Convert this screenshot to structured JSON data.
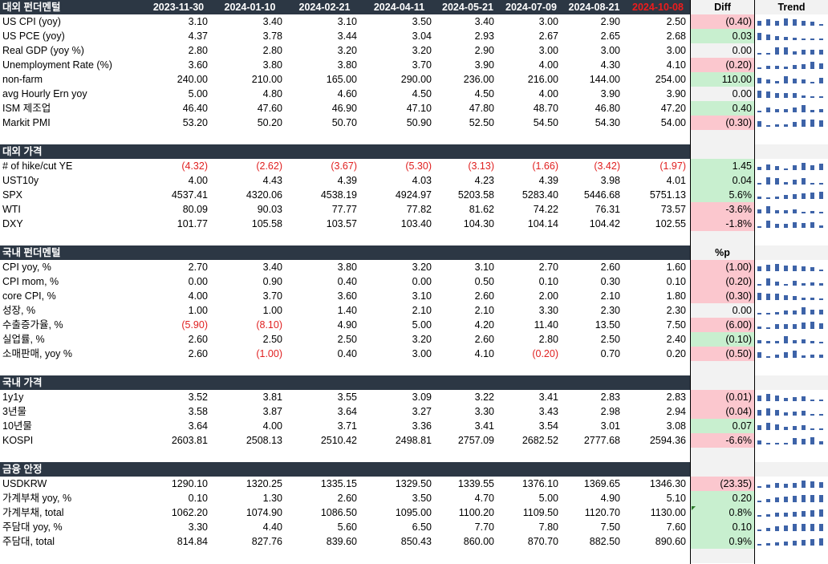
{
  "header": {
    "dates": [
      "2023-11-30",
      "2024-01-10",
      "2024-02-21",
      "2024-04-11",
      "2024-05-21",
      "2024-07-09",
      "2024-08-21",
      "2024-10-08"
    ],
    "highlight_last": "#ee1c1c",
    "diff_label": "Diff",
    "trend_label": "Trend"
  },
  "colors": {
    "section_bg": "#2c3744",
    "positive_bg": "#c8efcf",
    "negative_bg": "#fbc7ce",
    "neutral_bg": "#f2f2f2",
    "bar": "#3d63a8",
    "negative_text": "#e02020"
  },
  "sections": [
    {
      "title": "대외 펀더멘털",
      "col_label": "",
      "rows": [
        {
          "label": "US CPI (yoy)",
          "values": [
            "3.10",
            "3.40",
            "3.10",
            "3.50",
            "3.40",
            "3.00",
            "2.90",
            "2.50"
          ],
          "diff": "(0.40)",
          "sign": "neg"
        },
        {
          "label": "US PCE (yoy)",
          "values": [
            "4.37",
            "3.78",
            "3.44",
            "3.04",
            "2.93",
            "2.67",
            "2.65",
            "2.68"
          ],
          "diff": "0.03",
          "sign": "pos"
        },
        {
          "label": "Real GDP (yoy %)",
          "values": [
            "2.80",
            "2.80",
            "3.20",
            "3.20",
            "2.90",
            "3.00",
            "3.00",
            "3.00"
          ],
          "diff": "0.00",
          "sign": "zero"
        },
        {
          "label": "Unemployment Rate (%)",
          "values": [
            "3.60",
            "3.80",
            "3.80",
            "3.70",
            "3.90",
            "4.00",
            "4.30",
            "4.10"
          ],
          "diff": "(0.20)",
          "sign": "neg"
        },
        {
          "label": "non-farm",
          "values": [
            "240.00",
            "210.00",
            "165.00",
            "290.00",
            "236.00",
            "216.00",
            "144.00",
            "254.00"
          ],
          "diff": "110.00",
          "sign": "pos"
        },
        {
          "label": "avg Hourly Ern yoy",
          "values": [
            "5.00",
            "4.80",
            "4.60",
            "4.50",
            "4.50",
            "4.00",
            "3.90",
            "3.90"
          ],
          "diff": "0.00",
          "sign": "zero"
        },
        {
          "label": "ISM 제조업",
          "values": [
            "46.40",
            "47.60",
            "46.90",
            "47.10",
            "47.80",
            "48.70",
            "46.80",
            "47.20"
          ],
          "diff": "0.40",
          "sign": "pos"
        },
        {
          "label": "Markit PMI",
          "values": [
            "53.20",
            "50.20",
            "50.70",
            "50.90",
            "52.50",
            "54.50",
            "54.30",
            "54.00"
          ],
          "diff": "(0.30)",
          "sign": "neg"
        }
      ]
    },
    {
      "title": "대외 가격",
      "col_label": "",
      "rows": [
        {
          "label": "# of hike/cut YE",
          "values": [
            "(4.32)",
            "(2.62)",
            "(3.67)",
            "(5.30)",
            "(3.13)",
            "(1.66)",
            "(3.42)",
            "(1.97)"
          ],
          "diff": "1.45",
          "sign": "pos"
        },
        {
          "label": "UST10y",
          "values": [
            "4.00",
            "4.43",
            "4.39",
            "4.03",
            "4.23",
            "4.39",
            "3.98",
            "4.01"
          ],
          "diff": "0.04",
          "sign": "pos"
        },
        {
          "label": "SPX",
          "values": [
            "4537.41",
            "4320.06",
            "4538.19",
            "4924.97",
            "5203.58",
            "5283.40",
            "5446.68",
            "5751.13"
          ],
          "diff": "5.6%",
          "sign": "pos"
        },
        {
          "label": "WTI",
          "values": [
            "80.09",
            "90.03",
            "77.77",
            "77.82",
            "81.62",
            "74.22",
            "76.31",
            "73.57"
          ],
          "diff": "-3.6%",
          "sign": "neg"
        },
        {
          "label": "DXY",
          "values": [
            "101.77",
            "105.58",
            "103.57",
            "103.40",
            "104.30",
            "104.14",
            "104.42",
            "102.55"
          ],
          "diff": "-1.8%",
          "sign": "neg"
        }
      ]
    },
    {
      "title": "국내 펀더멘털",
      "col_label": "%p",
      "rows": [
        {
          "label": "CPI yoy, %",
          "values": [
            "2.70",
            "3.40",
            "3.80",
            "3.20",
            "3.10",
            "2.70",
            "2.60",
            "1.60"
          ],
          "diff": "(1.00)",
          "sign": "neg"
        },
        {
          "label": "CPI mom, %",
          "values": [
            "0.00",
            "0.90",
            "0.40",
            "0.00",
            "0.50",
            "0.10",
            "0.30",
            "0.10"
          ],
          "diff": "(0.20)",
          "sign": "neg"
        },
        {
          "label": "core CPI, %",
          "values": [
            "4.00",
            "3.70",
            "3.60",
            "3.10",
            "2.60",
            "2.00",
            "2.10",
            "1.80"
          ],
          "diff": "(0.30)",
          "sign": "neg"
        },
        {
          "label": "성장, %",
          "values": [
            "1.00",
            "1.00",
            "1.40",
            "2.10",
            "2.10",
            "3.30",
            "2.30",
            "2.30"
          ],
          "diff": "0.00",
          "sign": "zero"
        },
        {
          "label": "수출증가율, %",
          "values": [
            "(5.90)",
            "(8.10)",
            "4.90",
            "5.00",
            "4.20",
            "11.40",
            "13.50",
            "7.50"
          ],
          "diff": "(6.00)",
          "sign": "neg"
        },
        {
          "label": "실업률, %",
          "values": [
            "2.60",
            "2.50",
            "2.50",
            "3.20",
            "2.60",
            "2.80",
            "2.50",
            "2.40"
          ],
          "diff": "(0.10)",
          "sign": "pos"
        },
        {
          "label": "소매판매, yoy %",
          "values": [
            "2.60",
            "(1.00)",
            "0.40",
            "3.00",
            "4.10",
            "(0.20)",
            "0.70",
            "0.20"
          ],
          "diff": "(0.50)",
          "sign": "neg"
        }
      ]
    },
    {
      "title": "국내 가격",
      "col_label": "",
      "rows": [
        {
          "label": "1y1y",
          "values": [
            "3.52",
            "3.81",
            "3.55",
            "3.09",
            "3.22",
            "3.41",
            "2.83",
            "2.83"
          ],
          "diff": "(0.01)",
          "sign": "neg"
        },
        {
          "label": "3년물",
          "values": [
            "3.58",
            "3.87",
            "3.64",
            "3.27",
            "3.30",
            "3.43",
            "2.98",
            "2.94"
          ],
          "diff": "(0.04)",
          "sign": "neg"
        },
        {
          "label": "10년물",
          "values": [
            "3.64",
            "4.00",
            "3.71",
            "3.36",
            "3.41",
            "3.54",
            "3.01",
            "3.08"
          ],
          "diff": "0.07",
          "sign": "pos"
        },
        {
          "label": "KOSPI",
          "values": [
            "2603.81",
            "2508.13",
            "2510.42",
            "2498.81",
            "2757.09",
            "2682.52",
            "2777.68",
            "2594.36"
          ],
          "diff": "-6.6%",
          "sign": "neg"
        }
      ]
    },
    {
      "title": "금융 안정",
      "col_label": "",
      "rows": [
        {
          "label": "USDKRW",
          "values": [
            "1290.10",
            "1320.25",
            "1335.15",
            "1329.50",
            "1339.55",
            "1376.10",
            "1369.65",
            "1346.30"
          ],
          "diff": "(23.35)",
          "sign": "neg"
        },
        {
          "label": "가계부채 yoy, %",
          "values": [
            "0.10",
            "1.30",
            "2.60",
            "3.50",
            "4.70",
            "5.00",
            "4.90",
            "5.10"
          ],
          "diff": "0.20",
          "sign": "pos"
        },
        {
          "label": "가계부채, total",
          "values": [
            "1062.20",
            "1074.90",
            "1086.50",
            "1095.00",
            "1100.20",
            "1109.50",
            "1120.70",
            "1130.00"
          ],
          "diff": "0.8%",
          "sign": "pos"
        },
        {
          "label": "주담대 yoy, %",
          "values": [
            "3.30",
            "4.40",
            "5.60",
            "6.50",
            "7.70",
            "7.80",
            "7.50",
            "7.60"
          ],
          "diff": "0.10",
          "sign": "pos"
        },
        {
          "label": "주담대, total",
          "values": [
            "814.84",
            "827.76",
            "839.60",
            "850.43",
            "860.00",
            "870.70",
            "882.50",
            "890.60"
          ],
          "diff": "0.9%",
          "sign": "pos"
        }
      ]
    }
  ]
}
